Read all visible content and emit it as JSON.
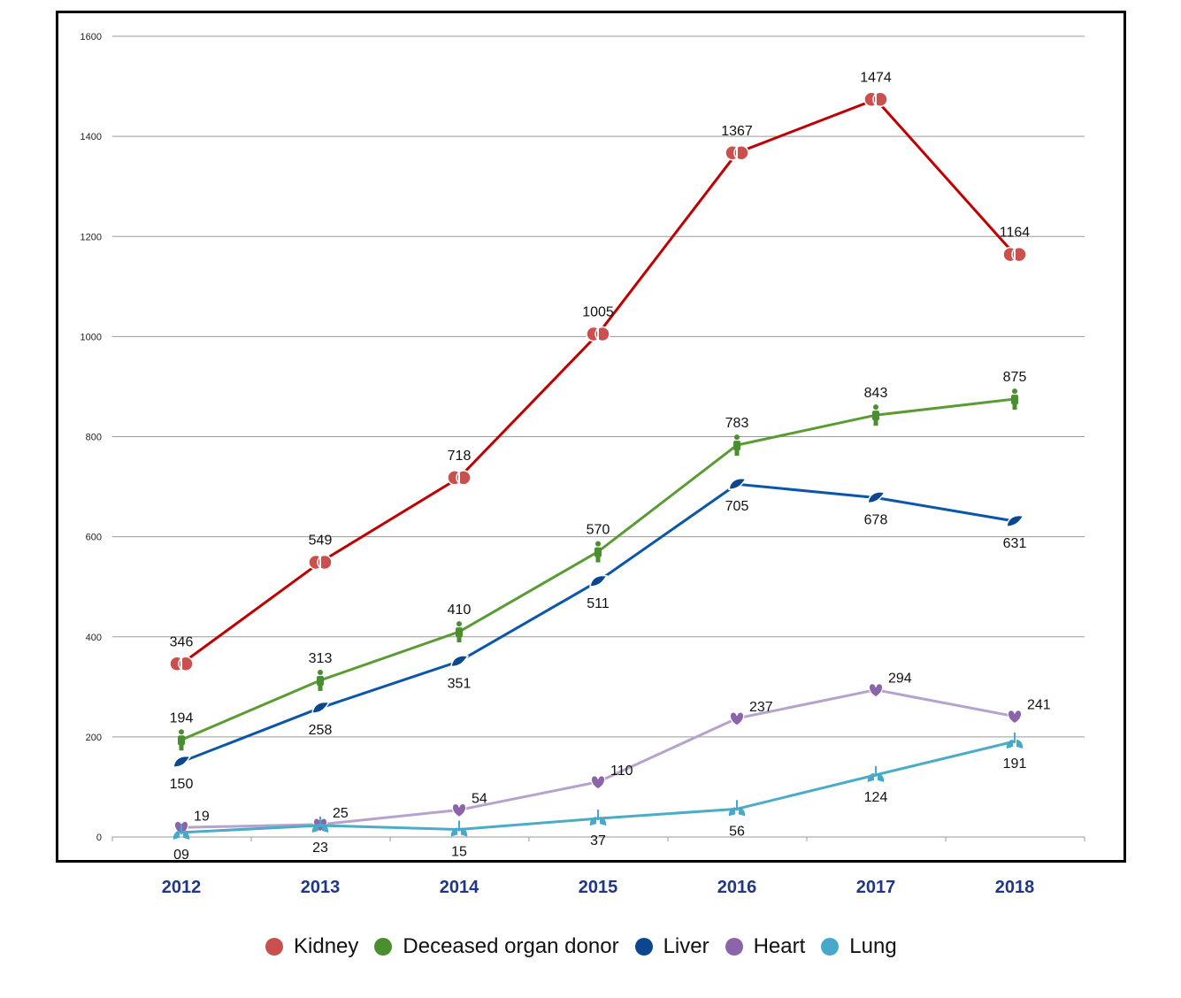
{
  "chart_data": {
    "type": "line",
    "x": [
      "2012",
      "2013",
      "2014",
      "2015",
      "2016",
      "2017",
      "2018"
    ],
    "ylim": [
      0,
      1600
    ],
    "yticks": [
      0,
      200,
      400,
      600,
      800,
      1000,
      1200,
      1400,
      1600
    ],
    "grid": true,
    "legend_position": "bottom",
    "series": [
      {
        "name": "Kidney",
        "color": "#c00000",
        "dot_color": "#c9504f",
        "icon": "kidney-icon",
        "values": [
          346,
          549,
          718,
          1005,
          1367,
          1474,
          1164
        ],
        "labels": [
          "346",
          "549",
          "718",
          "1005",
          "1367",
          "1474",
          "1164"
        ]
      },
      {
        "name": "Deceased organ donor",
        "color": "#5a9c33",
        "dot_color": "#4a8f2f",
        "icon": "person-icon",
        "values": [
          194,
          313,
          410,
          570,
          783,
          843,
          875
        ],
        "labels": [
          "194",
          "313",
          "410",
          "570",
          "783",
          "843",
          "875"
        ]
      },
      {
        "name": "Liver",
        "color": "#0b56a8",
        "dot_color": "#0a4790",
        "icon": "liver-icon",
        "values": [
          150,
          258,
          351,
          511,
          705,
          678,
          631
        ],
        "labels": [
          "150",
          "258",
          "351",
          "511",
          "705",
          "678",
          "631"
        ]
      },
      {
        "name": "Heart",
        "color": "#b6a2cc",
        "dot_color": "#8b64ab",
        "icon": "heart-icon",
        "values": [
          19,
          25,
          54,
          110,
          237,
          294,
          241
        ],
        "labels": [
          "19",
          "25",
          "54",
          "110",
          "237",
          "294",
          "241"
        ]
      },
      {
        "name": "Lung",
        "color": "#4bacc6",
        "dot_color": "#47a9c9",
        "icon": "lung-icon",
        "values": [
          9,
          23,
          15,
          37,
          56,
          124,
          191
        ],
        "labels": [
          "09",
          "23",
          "15",
          "37",
          "56",
          "124",
          "191"
        ]
      }
    ]
  }
}
